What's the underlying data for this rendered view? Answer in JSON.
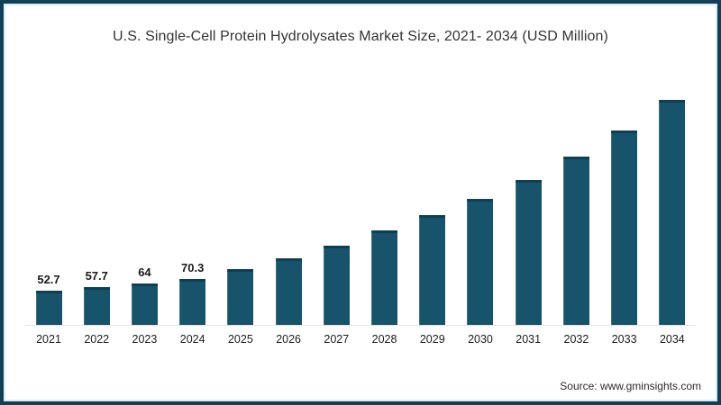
{
  "frame": {
    "border_color": "#123f55",
    "inner_line_color": "#d8ecf3",
    "background": "#ffffff"
  },
  "chart": {
    "title": "U.S. Single-Cell Protein Hydrolysates Market Size, 2021- 2034 (USD Million)"
  },
  "chart_data": {
    "type": "bar",
    "title": "U.S. Single-Cell Protein Hydrolysates Market Size, 2021- 2034 (USD Million)",
    "categories": [
      "2021",
      "2022",
      "2023",
      "2024",
      "2025",
      "2026",
      "2027",
      "2028",
      "2029",
      "2030",
      "2031",
      "2032",
      "2033",
      "2034"
    ],
    "values": [
      52.7,
      57.7,
      64,
      70.3,
      86,
      103,
      122,
      146,
      169,
      195,
      224,
      260,
      300,
      347
    ],
    "bar_labels": [
      "52.7",
      "57.7",
      "64",
      "70.3",
      "",
      "",
      "",
      "",
      "",
      "",
      "",
      "",
      "",
      ""
    ],
    "xlabel": "",
    "ylabel": "",
    "ylim": [
      0,
      350
    ],
    "grid": false,
    "legend": false,
    "bar_color": "#17536a",
    "baseline_color": "#e6e6e6",
    "value_label_color": "#1a1a1a",
    "tick_label_color": "#1c1c1c"
  },
  "footer": {
    "source_label": "Source: www.gminsights.com"
  }
}
